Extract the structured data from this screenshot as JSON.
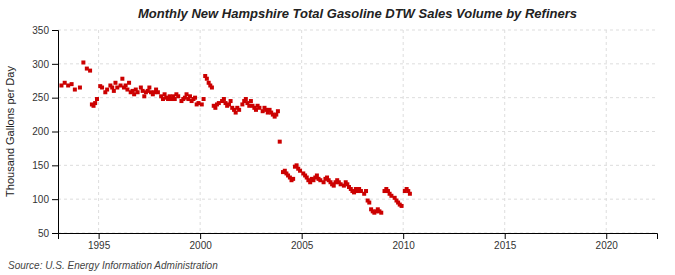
{
  "chart_data": {
    "type": "scatter",
    "title": "Monthly New Hampshire Total Gasoline DTW Sales Volume by Refiners",
    "ylabel": "Thousand Gallons per Day",
    "source": "Source: U.S. Energy Information Administration",
    "color": "#cc0000",
    "marker": "square",
    "grid": true,
    "xlim": [
      1993.0,
      2022.5
    ],
    "ylim": [
      50,
      350
    ],
    "xticks": [
      1995,
      2000,
      2005,
      2010,
      2015,
      2020
    ],
    "yticks": [
      50,
      100,
      150,
      200,
      250,
      300,
      350
    ],
    "x": [
      1993.17,
      1993.33,
      1993.5,
      1993.67,
      1993.83,
      1994.08,
      1994.25,
      1994.42,
      1994.58,
      1994.67,
      1994.75,
      1994.83,
      1994.92,
      1995.08,
      1995.17,
      1995.33,
      1995.42,
      1995.58,
      1995.67,
      1995.75,
      1995.83,
      1995.92,
      1996.08,
      1996.17,
      1996.25,
      1996.33,
      1996.42,
      1996.5,
      1996.58,
      1996.67,
      1996.75,
      1996.83,
      1996.92,
      1997.08,
      1997.17,
      1997.25,
      1997.33,
      1997.42,
      1997.5,
      1997.58,
      1997.67,
      1997.75,
      1997.83,
      1997.92,
      1998.08,
      1998.17,
      1998.25,
      1998.33,
      1998.42,
      1998.5,
      1998.58,
      1998.67,
      1998.75,
      1998.83,
      1998.92,
      1999.08,
      1999.17,
      1999.25,
      1999.33,
      1999.42,
      1999.5,
      1999.58,
      1999.67,
      1999.75,
      1999.83,
      1999.92,
      2000.08,
      2000.17,
      2000.25,
      2000.33,
      2000.42,
      2000.5,
      2000.58,
      2000.67,
      2000.75,
      2000.83,
      2000.92,
      2001.08,
      2001.17,
      2001.25,
      2001.33,
      2001.42,
      2001.5,
      2001.58,
      2001.67,
      2001.75,
      2001.83,
      2001.92,
      2002.08,
      2002.17,
      2002.25,
      2002.33,
      2002.42,
      2002.5,
      2002.58,
      2002.67,
      2002.75,
      2002.83,
      2002.92,
      2003.08,
      2003.17,
      2003.25,
      2003.33,
      2003.42,
      2003.5,
      2003.58,
      2003.67,
      2003.75,
      2003.83,
      2003.92,
      2004.08,
      2004.17,
      2004.25,
      2004.33,
      2004.42,
      2004.5,
      2004.58,
      2004.67,
      2004.75,
      2004.83,
      2004.92,
      2005.08,
      2005.17,
      2005.25,
      2005.33,
      2005.42,
      2005.5,
      2005.58,
      2005.67,
      2005.75,
      2005.83,
      2005.92,
      2006.08,
      2006.17,
      2006.25,
      2006.33,
      2006.42,
      2006.5,
      2006.58,
      2006.67,
      2006.75,
      2006.83,
      2006.92,
      2007.08,
      2007.17,
      2007.25,
      2007.33,
      2007.42,
      2007.5,
      2007.58,
      2007.67,
      2007.75,
      2007.83,
      2007.92,
      2008.08,
      2008.17,
      2008.25,
      2008.33,
      2008.42,
      2008.5,
      2008.58,
      2008.67,
      2008.75,
      2008.83,
      2008.92,
      2009.08,
      2009.17,
      2009.25,
      2009.33,
      2009.42,
      2009.58,
      2009.67,
      2009.75,
      2009.83,
      2009.92,
      2010.08,
      2010.17,
      2010.25,
      2010.33
    ],
    "values": [
      268,
      272,
      268,
      270,
      262,
      265,
      302,
      293,
      290,
      240,
      238,
      242,
      248,
      267,
      265,
      258,
      262,
      268,
      265,
      260,
      272,
      265,
      268,
      278,
      265,
      268,
      262,
      272,
      258,
      260,
      255,
      262,
      258,
      265,
      260,
      252,
      258,
      260,
      265,
      258,
      255,
      258,
      262,
      258,
      252,
      248,
      255,
      250,
      248,
      252,
      248,
      252,
      248,
      255,
      252,
      245,
      248,
      250,
      255,
      248,
      252,
      245,
      248,
      250,
      240,
      242,
      240,
      248,
      282,
      278,
      272,
      268,
      265,
      238,
      235,
      240,
      242,
      245,
      248,
      242,
      238,
      240,
      245,
      235,
      232,
      228,
      235,
      232,
      240,
      245,
      248,
      242,
      238,
      245,
      238,
      235,
      232,
      238,
      235,
      230,
      235,
      232,
      228,
      232,
      228,
      225,
      222,
      225,
      230,
      185,
      140,
      142,
      138,
      135,
      132,
      128,
      130,
      148,
      150,
      145,
      142,
      138,
      135,
      132,
      128,
      125,
      130,
      128,
      132,
      135,
      130,
      128,
      125,
      130,
      132,
      128,
      125,
      122,
      120,
      125,
      128,
      125,
      122,
      120,
      125,
      122,
      118,
      115,
      112,
      110,
      115,
      112,
      115,
      112,
      108,
      112,
      98,
      95,
      85,
      82,
      80,
      82,
      85,
      82,
      80,
      112,
      115,
      112,
      108,
      105,
      102,
      98,
      95,
      92,
      90,
      112,
      115,
      112,
      108
    ]
  }
}
